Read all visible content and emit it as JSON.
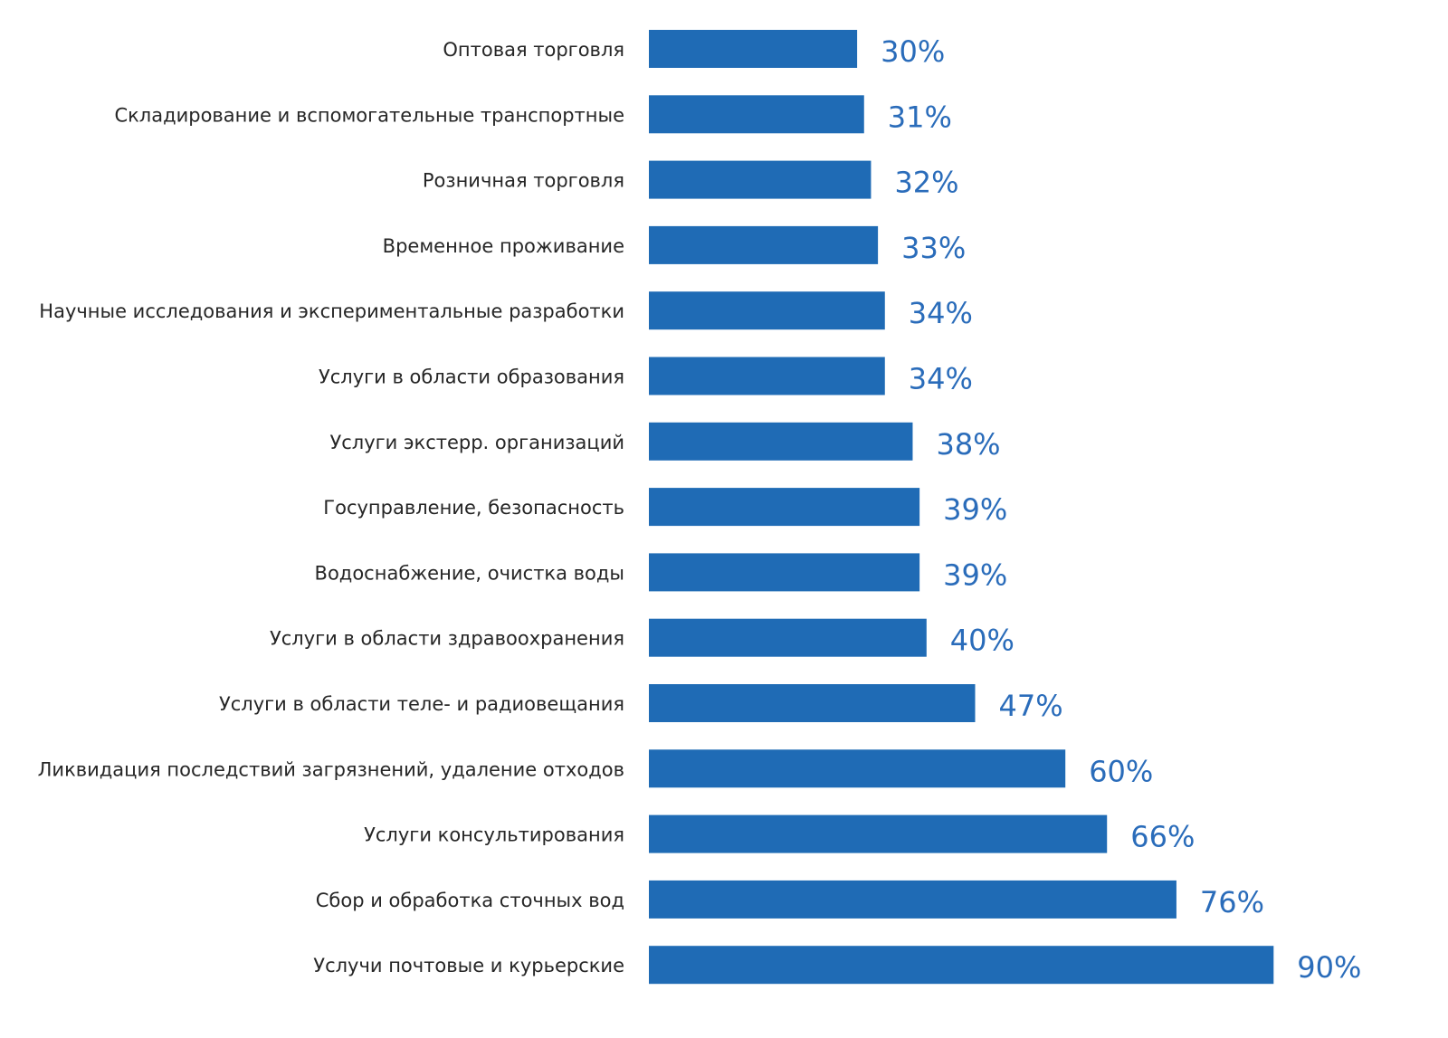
{
  "chart_data": {
    "type": "bar",
    "orientation": "horizontal",
    "title": "",
    "xlabel": "",
    "ylabel": "",
    "xlim": [
      0,
      90
    ],
    "grid": false,
    "value_suffix": "%",
    "bar_color": "#1f6bb5",
    "label_color": "#2a6cba",
    "categories": [
      "Оптовая торговля",
      "Складирование и вспомогательные транспортные",
      "Розничная торговля",
      "Временное проживание",
      "Научные исследования и экспериментальные разработки",
      "Услуги в области образования",
      "Услуги экстерр. организаций",
      "Госуправление, безопасность",
      "Водоснабжение, очистка воды",
      "Услуги в области здравоохранения",
      "Услуги в области теле- и радиовещания",
      "Ликвидация последствий загрязнений, удаление отходов",
      "Услуги консультирования",
      "Сбор и обработка сточных вод",
      "Услучи почтовые и курьерские"
    ],
    "values": [
      30,
      31,
      32,
      33,
      34,
      34,
      38,
      39,
      39,
      40,
      47,
      60,
      66,
      76,
      90
    ],
    "value_labels": [
      "30%",
      "31%",
      "32%",
      "33%",
      "34%",
      "34%",
      "38%",
      "39%",
      "39%",
      "40%",
      "47%",
      "60%",
      "66%",
      "76%",
      "90%"
    ]
  }
}
